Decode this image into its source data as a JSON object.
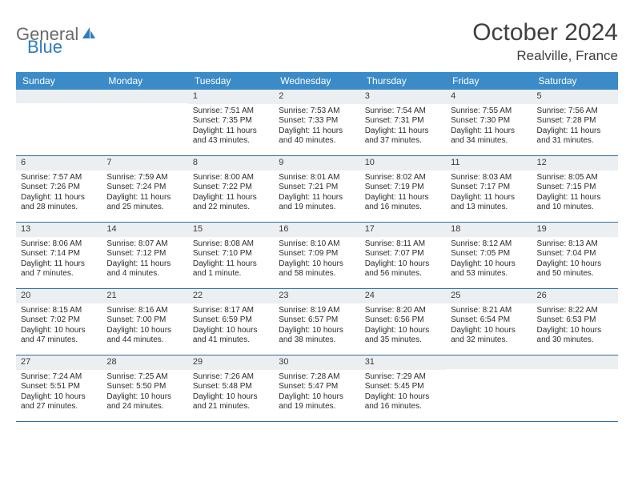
{
  "logo": {
    "part1": "General",
    "part2": "Blue"
  },
  "title": "October 2024",
  "location": "Realville, France",
  "colors": {
    "header_bg": "#3b8bc9",
    "header_text": "#ffffff",
    "daynum_bg": "#eceff1",
    "border": "#2f6fa3",
    "logo_gray": "#6a6a6a",
    "logo_blue": "#2f7bbf",
    "title_color": "#404040",
    "body_text": "#2b2b2b"
  },
  "dow": [
    "Sunday",
    "Monday",
    "Tuesday",
    "Wednesday",
    "Thursday",
    "Friday",
    "Saturday"
  ],
  "weeks": [
    [
      {
        "empty": true
      },
      {
        "empty": true
      },
      {
        "n": "1",
        "sr": "7:51 AM",
        "ss": "7:35 PM",
        "dl": "11 hours and 43 minutes."
      },
      {
        "n": "2",
        "sr": "7:53 AM",
        "ss": "7:33 PM",
        "dl": "11 hours and 40 minutes."
      },
      {
        "n": "3",
        "sr": "7:54 AM",
        "ss": "7:31 PM",
        "dl": "11 hours and 37 minutes."
      },
      {
        "n": "4",
        "sr": "7:55 AM",
        "ss": "7:30 PM",
        "dl": "11 hours and 34 minutes."
      },
      {
        "n": "5",
        "sr": "7:56 AM",
        "ss": "7:28 PM",
        "dl": "11 hours and 31 minutes."
      }
    ],
    [
      {
        "n": "6",
        "sr": "7:57 AM",
        "ss": "7:26 PM",
        "dl": "11 hours and 28 minutes."
      },
      {
        "n": "7",
        "sr": "7:59 AM",
        "ss": "7:24 PM",
        "dl": "11 hours and 25 minutes."
      },
      {
        "n": "8",
        "sr": "8:00 AM",
        "ss": "7:22 PM",
        "dl": "11 hours and 22 minutes."
      },
      {
        "n": "9",
        "sr": "8:01 AM",
        "ss": "7:21 PM",
        "dl": "11 hours and 19 minutes."
      },
      {
        "n": "10",
        "sr": "8:02 AM",
        "ss": "7:19 PM",
        "dl": "11 hours and 16 minutes."
      },
      {
        "n": "11",
        "sr": "8:03 AM",
        "ss": "7:17 PM",
        "dl": "11 hours and 13 minutes."
      },
      {
        "n": "12",
        "sr": "8:05 AM",
        "ss": "7:15 PM",
        "dl": "11 hours and 10 minutes."
      }
    ],
    [
      {
        "n": "13",
        "sr": "8:06 AM",
        "ss": "7:14 PM",
        "dl": "11 hours and 7 minutes."
      },
      {
        "n": "14",
        "sr": "8:07 AM",
        "ss": "7:12 PM",
        "dl": "11 hours and 4 minutes."
      },
      {
        "n": "15",
        "sr": "8:08 AM",
        "ss": "7:10 PM",
        "dl": "11 hours and 1 minute."
      },
      {
        "n": "16",
        "sr": "8:10 AM",
        "ss": "7:09 PM",
        "dl": "10 hours and 58 minutes."
      },
      {
        "n": "17",
        "sr": "8:11 AM",
        "ss": "7:07 PM",
        "dl": "10 hours and 56 minutes."
      },
      {
        "n": "18",
        "sr": "8:12 AM",
        "ss": "7:05 PM",
        "dl": "10 hours and 53 minutes."
      },
      {
        "n": "19",
        "sr": "8:13 AM",
        "ss": "7:04 PM",
        "dl": "10 hours and 50 minutes."
      }
    ],
    [
      {
        "n": "20",
        "sr": "8:15 AM",
        "ss": "7:02 PM",
        "dl": "10 hours and 47 minutes."
      },
      {
        "n": "21",
        "sr": "8:16 AM",
        "ss": "7:00 PM",
        "dl": "10 hours and 44 minutes."
      },
      {
        "n": "22",
        "sr": "8:17 AM",
        "ss": "6:59 PM",
        "dl": "10 hours and 41 minutes."
      },
      {
        "n": "23",
        "sr": "8:19 AM",
        "ss": "6:57 PM",
        "dl": "10 hours and 38 minutes."
      },
      {
        "n": "24",
        "sr": "8:20 AM",
        "ss": "6:56 PM",
        "dl": "10 hours and 35 minutes."
      },
      {
        "n": "25",
        "sr": "8:21 AM",
        "ss": "6:54 PM",
        "dl": "10 hours and 32 minutes."
      },
      {
        "n": "26",
        "sr": "8:22 AM",
        "ss": "6:53 PM",
        "dl": "10 hours and 30 minutes."
      }
    ],
    [
      {
        "n": "27",
        "sr": "7:24 AM",
        "ss": "5:51 PM",
        "dl": "10 hours and 27 minutes."
      },
      {
        "n": "28",
        "sr": "7:25 AM",
        "ss": "5:50 PM",
        "dl": "10 hours and 24 minutes."
      },
      {
        "n": "29",
        "sr": "7:26 AM",
        "ss": "5:48 PM",
        "dl": "10 hours and 21 minutes."
      },
      {
        "n": "30",
        "sr": "7:28 AM",
        "ss": "5:47 PM",
        "dl": "10 hours and 19 minutes."
      },
      {
        "n": "31",
        "sr": "7:29 AM",
        "ss": "5:45 PM",
        "dl": "10 hours and 16 minutes."
      },
      {
        "empty": true
      },
      {
        "empty": true
      }
    ]
  ],
  "labels": {
    "sunrise": "Sunrise: ",
    "sunset": "Sunset: ",
    "daylight": "Daylight: "
  }
}
